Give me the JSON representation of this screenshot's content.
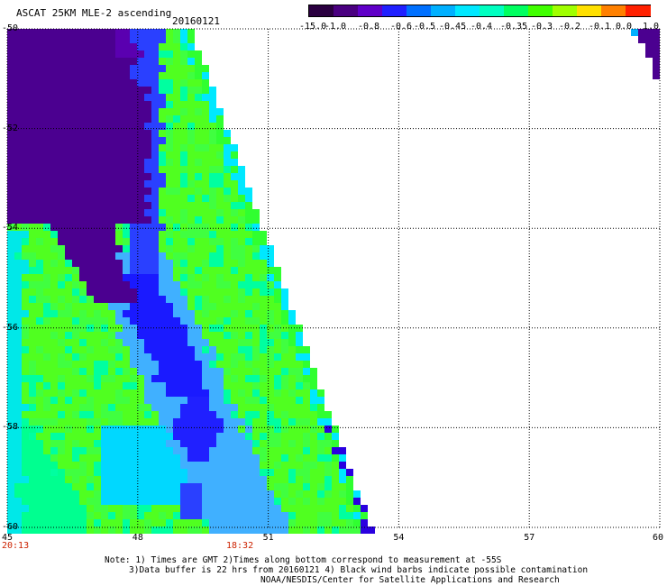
{
  "header": {
    "title": "ASCAT 25KM MLE-2 ascending",
    "date": "20160121"
  },
  "colorbar": {
    "labels": [
      "-15.0",
      "-1.0",
      "-0.8",
      "-0.6",
      "-0.5",
      "-0.45",
      "-0.4",
      "-0.35",
      "-0.3",
      "-0.2",
      "-0.1",
      "0.0",
      "1.0"
    ],
    "colors": [
      "#2a0040",
      "#4a0080",
      "#6000c8",
      "#2020ff",
      "#0070ff",
      "#00b0ff",
      "#00e8ff",
      "#00ffc0",
      "#00ff60",
      "#40ff00",
      "#a0ff00",
      "#ffe000",
      "#ff8000",
      "#ff2000"
    ]
  },
  "axes": {
    "x_ticks": [
      "45",
      "48",
      "51",
      "54",
      "57",
      "60"
    ],
    "y_ticks": [
      "-50",
      "-52",
      "-54",
      "-56",
      "-58",
      "-60"
    ],
    "times": [
      "20:13",
      "18:32"
    ]
  },
  "notes": {
    "line1": "Note: 1) Times are GMT 2)Times along bottom correspond to measurement at -55S",
    "line2": "3)Data buffer is 22 hrs from 20160121 4) Black wind barbs indicate possible contamination",
    "line3": "NOAA/NESDIS/Center for Satellite Applications and Research"
  }
}
